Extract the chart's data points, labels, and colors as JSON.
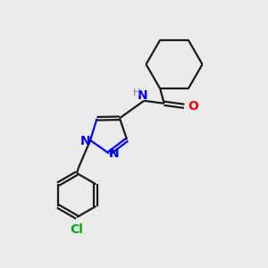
{
  "bg_color": "#ebebeb",
  "bond_color": "#1a1a1a",
  "N_color": "#0000ff",
  "O_color": "#ff0000",
  "Cl_color": "#00aa00",
  "H_color": "#708090",
  "line_width": 1.6,
  "dbo": 0.055,
  "font_size": 10,
  "small_font_size": 8,
  "figsize": [
    3.0,
    3.0
  ],
  "dpi": 100,
  "xlim": [
    0,
    10
  ],
  "ylim": [
    0,
    10
  ]
}
